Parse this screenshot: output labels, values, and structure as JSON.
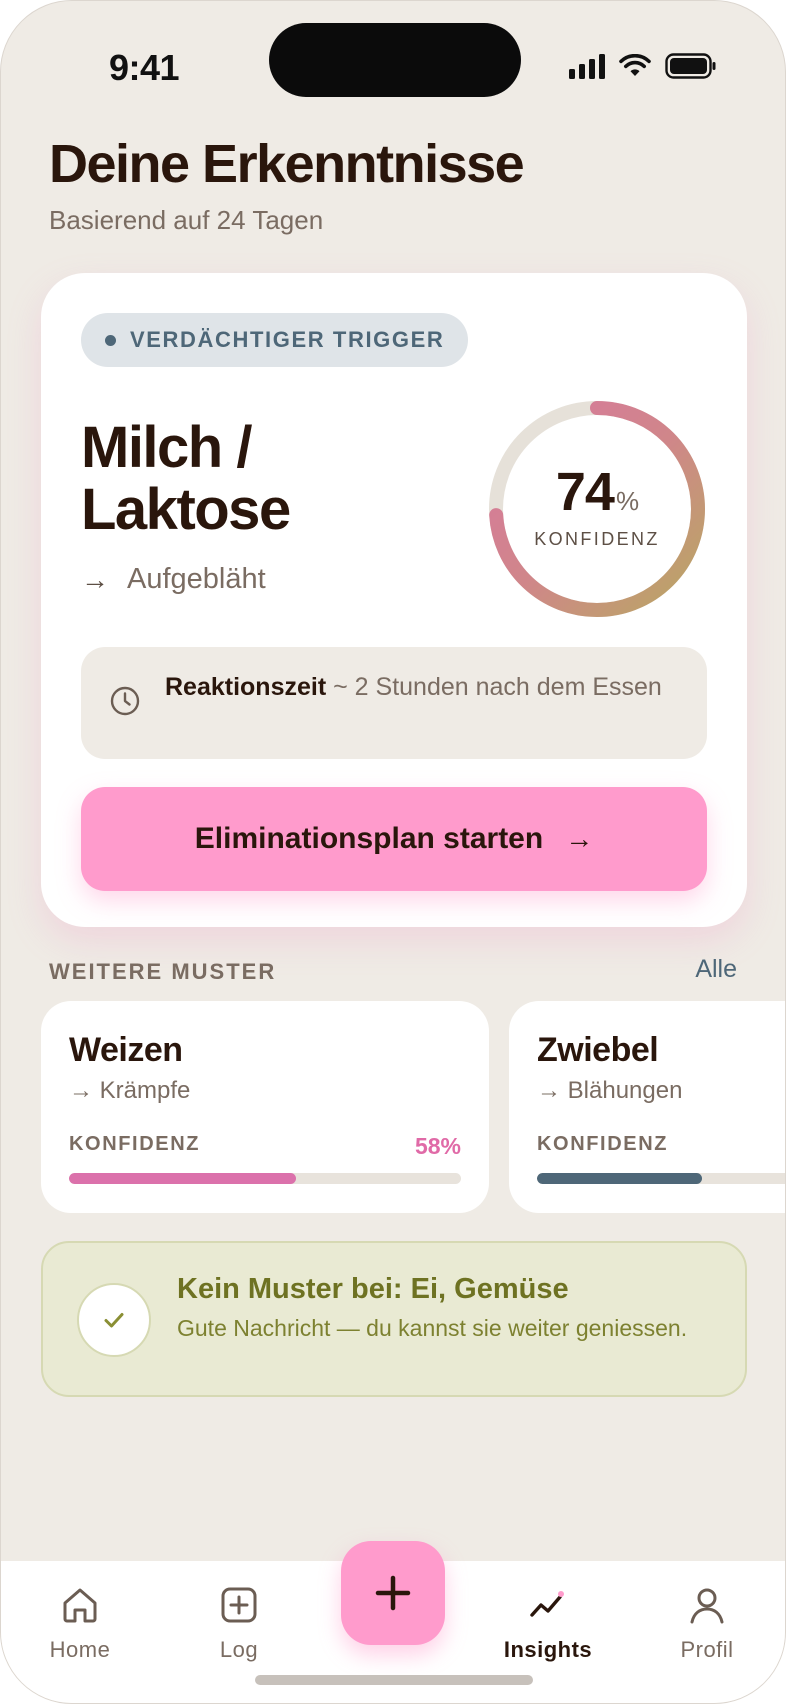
{
  "status_bar": {
    "time": "9:41"
  },
  "header": {
    "title": "Deine Erkenntnisse",
    "subtitle": "Basierend auf 24 Tagen"
  },
  "main_card": {
    "badge": "VERDÄCHTIGER TRIGGER",
    "trigger_line1": "Milch /",
    "trigger_line2": "Laktose",
    "symptom_arrow": "→",
    "symptom": "Aufgebläht",
    "confidence_value": "74",
    "confidence_unit": "%",
    "confidence_fraction": 0.74,
    "confidence_label": "KONFIDENZ",
    "reaction_label": "Reaktionszeit",
    "reaction_text": "~ 2 Stunden nach dem Essen",
    "cta_label": "Eliminationsplan starten",
    "cta_arrow": "→"
  },
  "patterns": {
    "section_label": "WEITERE MUSTER",
    "link_label": "Alle",
    "items": [
      {
        "name": "Weizen",
        "symptom": "→ Krämpfe",
        "conf_label": "KONFIDENZ",
        "conf_value": "58%",
        "fraction": 0.58,
        "color": "#db71ab"
      },
      {
        "name": "Zwiebel",
        "symptom": "→ Blähungen",
        "conf_label": "KONFIDENZ",
        "conf_value": "",
        "fraction": 0.42,
        "color": "#4e6778"
      }
    ]
  },
  "no_pattern": {
    "title": "Kein Muster bei: Ei, Gemüse",
    "text": "Gute Nachricht — du kannst sie weiter geniessen."
  },
  "tabbar": {
    "home": "Home",
    "log": "Log",
    "insights": "Insights",
    "profile": "Profil",
    "active": "insights"
  },
  "colors": {
    "accent_pink": "#ff9bcc",
    "slate": "#4e6778",
    "olive": "#6e7222",
    "background": "#efebe5"
  }
}
